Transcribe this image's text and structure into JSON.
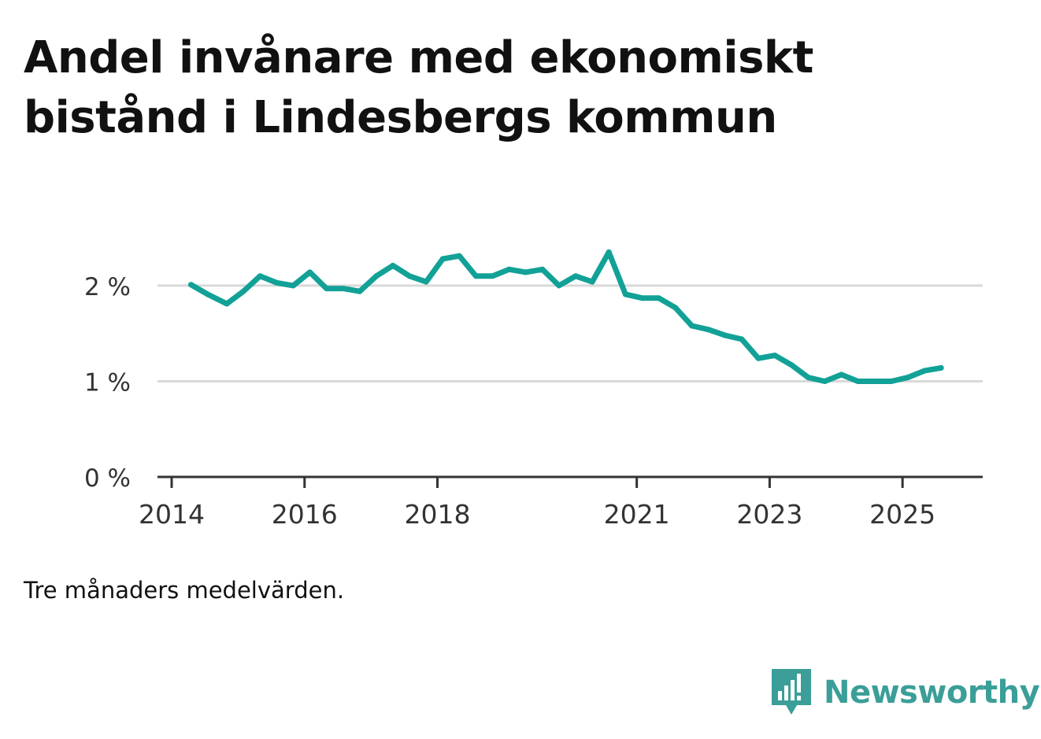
{
  "title": "Andel invånare med ekonomiskt bistånd i Lindesbergs kommun",
  "note": "Tre månaders medelvärden.",
  "brand": {
    "name": "Newsworthy",
    "icon": "newsworthy-logo-icon",
    "color": "#3b9e98"
  },
  "chart_data": {
    "type": "line",
    "title": "Andel invånare med ekonomiskt bistånd i Lindesbergs kommun",
    "xlabel": "",
    "ylabel": "",
    "ylim": [
      0,
      2.6
    ],
    "xlim": [
      2014,
      2025.65
    ],
    "grid": true,
    "line_color": "#12a197",
    "y_ticks": [
      {
        "value": 0,
        "label": "0 %"
      },
      {
        "value": 1,
        "label": "1 %"
      },
      {
        "value": 2,
        "label": "2 %"
      }
    ],
    "x_ticks": [
      {
        "value": 2014,
        "label": "2014"
      },
      {
        "value": 2016,
        "label": "2016"
      },
      {
        "value": 2018,
        "label": "2018"
      },
      {
        "value": 2021,
        "label": "2021"
      },
      {
        "value": 2023,
        "label": "2023"
      },
      {
        "value": 2025,
        "label": "2025"
      }
    ],
    "series": [
      {
        "name": "Andel invånare med ekonomiskt bistånd",
        "x": [
          2014.29,
          2014.54,
          2014.83,
          2015.08,
          2015.33,
          2015.58,
          2015.83,
          2016.08,
          2016.33,
          2016.58,
          2016.83,
          2017.08,
          2017.33,
          2017.58,
          2017.83,
          2018.08,
          2018.33,
          2018.58,
          2018.83,
          2019.08,
          2019.33,
          2019.58,
          2019.83,
          2020.08,
          2020.33,
          2020.58,
          2020.83,
          2021.08,
          2021.33,
          2021.58,
          2021.83,
          2022.08,
          2022.33,
          2022.58,
          2022.83,
          2023.08,
          2023.33,
          2023.58,
          2023.83,
          2024.08,
          2024.33,
          2024.58,
          2024.83,
          2025.08,
          2025.33,
          2025.58
        ],
        "values": [
          2.01,
          1.91,
          1.81,
          1.94,
          2.1,
          2.03,
          2.0,
          2.14,
          1.97,
          1.97,
          1.94,
          2.1,
          2.21,
          2.1,
          2.04,
          2.28,
          2.31,
          2.1,
          2.1,
          2.17,
          2.14,
          2.17,
          2.0,
          2.1,
          2.04,
          2.35,
          1.91,
          1.87,
          1.87,
          1.77,
          1.58,
          1.54,
          1.48,
          1.44,
          1.24,
          1.27,
          1.17,
          1.04,
          1.0,
          1.07,
          1.0,
          1.0,
          1.0,
          1.04,
          1.11,
          1.14
        ]
      }
    ]
  }
}
